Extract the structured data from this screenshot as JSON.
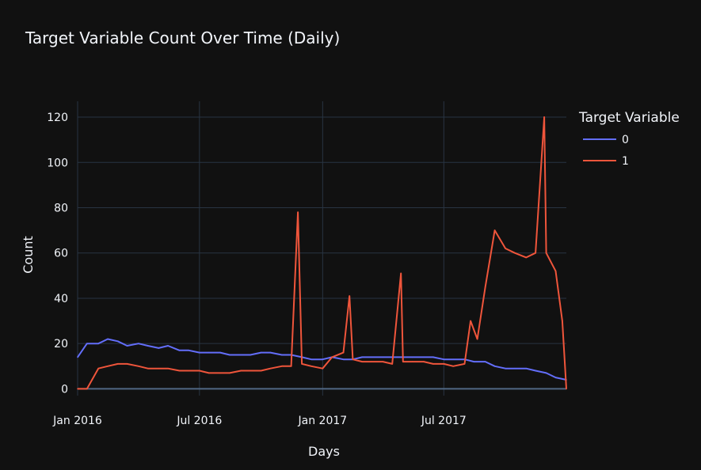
{
  "chart_data": {
    "type": "line",
    "title": "Target Variable Count Over Time (Daily)",
    "xlabel": "Days",
    "ylabel": "Count",
    "xlim": [
      "2016-01-01",
      "2017-12-31"
    ],
    "ylim": [
      -3,
      127
    ],
    "x_ticks": [
      {
        "date": "2016-01-01",
        "label": "Jan 2016"
      },
      {
        "date": "2016-07-01",
        "label": "Jul 2016"
      },
      {
        "date": "2017-01-01",
        "label": "Jan 2017"
      },
      {
        "date": "2017-07-01",
        "label": "Jul 2017"
      }
    ],
    "y_ticks": [
      0,
      20,
      40,
      60,
      80,
      100,
      120
    ],
    "grid": true,
    "legend": {
      "title": "Target Variable",
      "placement": "top-right"
    },
    "series": [
      {
        "name": "0",
        "color": "#636efa",
        "points": [
          [
            "2016-01-01",
            14
          ],
          [
            "2016-01-15",
            20
          ],
          [
            "2016-02-01",
            20
          ],
          [
            "2016-02-15",
            22
          ],
          [
            "2016-03-01",
            21
          ],
          [
            "2016-03-15",
            19
          ],
          [
            "2016-04-01",
            20
          ],
          [
            "2016-04-15",
            19
          ],
          [
            "2016-05-01",
            18
          ],
          [
            "2016-05-15",
            19
          ],
          [
            "2016-06-01",
            17
          ],
          [
            "2016-06-15",
            17
          ],
          [
            "2016-07-01",
            16
          ],
          [
            "2016-07-15",
            16
          ],
          [
            "2016-08-01",
            16
          ],
          [
            "2016-08-15",
            15
          ],
          [
            "2016-09-01",
            15
          ],
          [
            "2016-09-15",
            15
          ],
          [
            "2016-10-01",
            16
          ],
          [
            "2016-10-15",
            16
          ],
          [
            "2016-11-01",
            15
          ],
          [
            "2016-11-15",
            15
          ],
          [
            "2016-12-01",
            14
          ],
          [
            "2016-12-15",
            13
          ],
          [
            "2017-01-01",
            13
          ],
          [
            "2017-01-15",
            14
          ],
          [
            "2017-02-01",
            13
          ],
          [
            "2017-02-15",
            13
          ],
          [
            "2017-03-01",
            14
          ],
          [
            "2017-03-15",
            14
          ],
          [
            "2017-04-01",
            14
          ],
          [
            "2017-04-15",
            14
          ],
          [
            "2017-05-01",
            14
          ],
          [
            "2017-05-15",
            14
          ],
          [
            "2017-06-01",
            14
          ],
          [
            "2017-06-15",
            14
          ],
          [
            "2017-07-01",
            13
          ],
          [
            "2017-07-15",
            13
          ],
          [
            "2017-08-01",
            13
          ],
          [
            "2017-08-15",
            12
          ],
          [
            "2017-09-01",
            12
          ],
          [
            "2017-09-15",
            10
          ],
          [
            "2017-10-01",
            9
          ],
          [
            "2017-10-15",
            9
          ],
          [
            "2017-11-01",
            9
          ],
          [
            "2017-11-15",
            8
          ],
          [
            "2017-12-01",
            7
          ],
          [
            "2017-12-15",
            5
          ],
          [
            "2017-12-31",
            4
          ]
        ]
      },
      {
        "name": "1",
        "color": "#ef553b",
        "points": [
          [
            "2016-01-01",
            0
          ],
          [
            "2016-01-15",
            0
          ],
          [
            "2016-02-01",
            9
          ],
          [
            "2016-02-15",
            10
          ],
          [
            "2016-03-01",
            11
          ],
          [
            "2016-03-15",
            11
          ],
          [
            "2016-04-01",
            10
          ],
          [
            "2016-04-15",
            9
          ],
          [
            "2016-05-01",
            9
          ],
          [
            "2016-05-15",
            9
          ],
          [
            "2016-06-01",
            8
          ],
          [
            "2016-06-15",
            8
          ],
          [
            "2016-07-01",
            8
          ],
          [
            "2016-07-15",
            7
          ],
          [
            "2016-08-01",
            7
          ],
          [
            "2016-08-15",
            7
          ],
          [
            "2016-09-01",
            8
          ],
          [
            "2016-09-15",
            8
          ],
          [
            "2016-10-01",
            8
          ],
          [
            "2016-10-15",
            9
          ],
          [
            "2016-11-01",
            10
          ],
          [
            "2016-11-15",
            10
          ],
          [
            "2016-11-25",
            78
          ],
          [
            "2016-12-01",
            11
          ],
          [
            "2016-12-15",
            10
          ],
          [
            "2017-01-01",
            9
          ],
          [
            "2017-01-15",
            14
          ],
          [
            "2017-02-01",
            16
          ],
          [
            "2017-02-10",
            41
          ],
          [
            "2017-02-15",
            13
          ],
          [
            "2017-03-01",
            12
          ],
          [
            "2017-03-15",
            12
          ],
          [
            "2017-04-01",
            12
          ],
          [
            "2017-04-15",
            11
          ],
          [
            "2017-04-28",
            51
          ],
          [
            "2017-05-01",
            12
          ],
          [
            "2017-05-15",
            12
          ],
          [
            "2017-06-01",
            12
          ],
          [
            "2017-06-15",
            11
          ],
          [
            "2017-07-01",
            11
          ],
          [
            "2017-07-15",
            10
          ],
          [
            "2017-08-01",
            11
          ],
          [
            "2017-08-10",
            30
          ],
          [
            "2017-08-20",
            22
          ],
          [
            "2017-09-01",
            45
          ],
          [
            "2017-09-15",
            70
          ],
          [
            "2017-10-01",
            62
          ],
          [
            "2017-10-15",
            60
          ],
          [
            "2017-11-01",
            58
          ],
          [
            "2017-11-15",
            60
          ],
          [
            "2017-11-28",
            120
          ],
          [
            "2017-12-01",
            60
          ],
          [
            "2017-12-15",
            52
          ],
          [
            "2017-12-25",
            30
          ],
          [
            "2017-12-31",
            0
          ]
        ]
      }
    ]
  }
}
